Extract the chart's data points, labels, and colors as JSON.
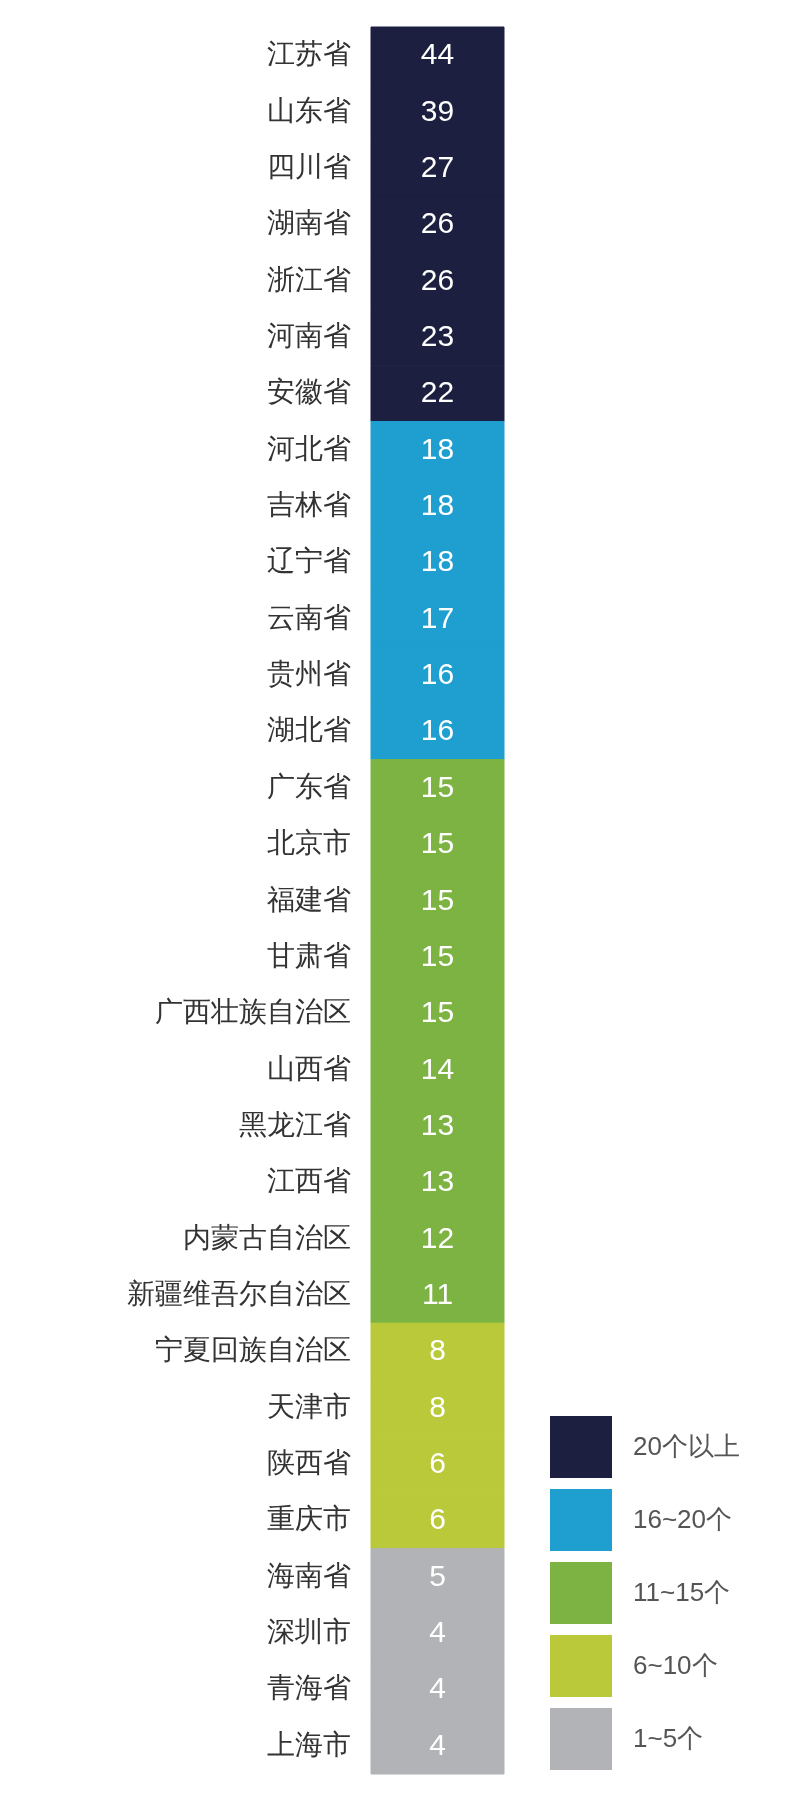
{
  "chart_data": {
    "type": "heatmap",
    "categories": [
      null
    ],
    "y_categories": [
      "江苏省",
      "山东省",
      "四川省",
      "湖南省",
      "浙江省",
      "河南省",
      "安徽省",
      "河北省",
      "吉林省",
      "辽宁省",
      "云南省",
      "贵州省",
      "湖北省",
      "广东省",
      "北京市",
      "福建省",
      "甘肃省",
      "广西壮族自治区",
      "山西省",
      "黑龙江省",
      "江西省",
      "内蒙古自治区",
      "新疆维吾尔自治区",
      "宁夏回族自治区",
      "天津市",
      "陕西省",
      "重庆市",
      "海南省",
      "深圳市",
      "青海省",
      "上海市"
    ],
    "cells": [
      [
        44
      ],
      [
        39
      ],
      [
        27
      ],
      [
        26
      ],
      [
        26
      ],
      [
        23
      ],
      [
        22
      ],
      [
        18
      ],
      [
        18
      ],
      [
        18
      ],
      [
        17
      ],
      [
        16
      ],
      [
        16
      ],
      [
        15
      ],
      [
        15
      ],
      [
        15
      ],
      [
        15
      ],
      [
        15
      ],
      [
        14
      ],
      [
        13
      ],
      [
        13
      ],
      [
        12
      ],
      [
        11
      ],
      [
        8
      ],
      [
        8
      ],
      [
        6
      ],
      [
        6
      ],
      [
        5
      ],
      [
        4
      ],
      [
        4
      ],
      [
        4
      ]
    ],
    "colors": [
      "#1d1f40",
      "#1d1f40",
      "#1d1f40",
      "#1d1f40",
      "#1d1f40",
      "#1d1f40",
      "#1d1f40",
      "#1f9fd0",
      "#1f9fd0",
      "#1f9fd0",
      "#1f9fd0",
      "#1f9fd0",
      "#1f9fd0",
      "#7cb342",
      "#7cb342",
      "#7cb342",
      "#7cb342",
      "#7cb342",
      "#7cb342",
      "#7cb342",
      "#7cb342",
      "#7cb342",
      "#7cb342",
      "#bac93a",
      "#bac93a",
      "#bac93a",
      "#bac93a",
      "#b2b3b6",
      "#b2b3b6",
      "#b2b3b6",
      "#b2b3b6"
    ],
    "series": [
      {
        "name": "20个以上",
        "color": "#1d1f40",
        "values": [
          null
        ]
      },
      {
        "name": "16~20个",
        "color": "#1f9fd0",
        "values": [
          null
        ]
      },
      {
        "name": "11~15个",
        "color": "#7cb342",
        "values": [
          null
        ]
      },
      {
        "name": "6~10个",
        "color": "#bac93a",
        "values": [
          null
        ]
      },
      {
        "name": "1~5个",
        "color": "#b2b3b6",
        "values": [
          null
        ]
      }
    ],
    "data_labels": true,
    "legend": "bottom right"
  }
}
